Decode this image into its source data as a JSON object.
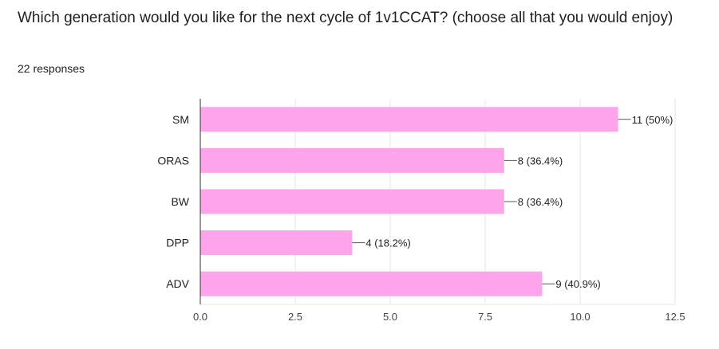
{
  "question": {
    "title": "Which generation would you like for the next cycle of 1v1CCAT? (choose all that you would enjoy)",
    "responses": "22 responses"
  },
  "chart_data": {
    "type": "bar",
    "orientation": "horizontal",
    "categories": [
      "SM",
      "ORAS",
      "BW",
      "DPP",
      "ADV"
    ],
    "values": [
      11,
      8,
      8,
      4,
      9
    ],
    "data_labels": [
      "11 (50%)",
      "8 (36.4%)",
      "8 (36.4%)",
      "4 (18.2%)",
      "9 (40.9%)"
    ],
    "x_ticks": [
      "0.0",
      "2.5",
      "5.0",
      "7.5",
      "10.0",
      "12.5"
    ],
    "xlim": [
      0,
      12.5
    ],
    "grid": true,
    "bar_color": "#fda4ea"
  }
}
